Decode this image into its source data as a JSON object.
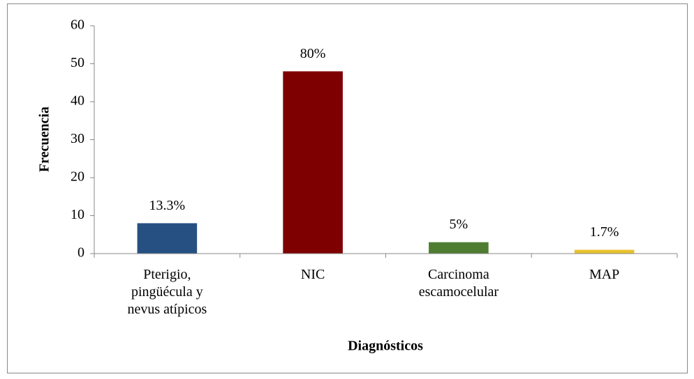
{
  "chart_data": {
    "type": "bar",
    "x_label": "Diagnósticos",
    "y_label": "Frecuencia",
    "categories": [
      "Pterigio,\npingüécula y\nnevus atípicos",
      "NIC",
      "Carcinoma\nescamocelular",
      "MAP"
    ],
    "values": [
      8,
      48,
      3,
      1
    ],
    "value_labels": [
      "13.3%",
      "80%",
      "5%",
      "1.7%"
    ],
    "colors": [
      "#265082",
      "#7f0000",
      "#4e7d32",
      "#e8c12e"
    ],
    "ylim": [
      0,
      60
    ],
    "yticks": [
      0,
      10,
      20,
      30,
      40,
      50,
      60
    ],
    "grid": false
  }
}
